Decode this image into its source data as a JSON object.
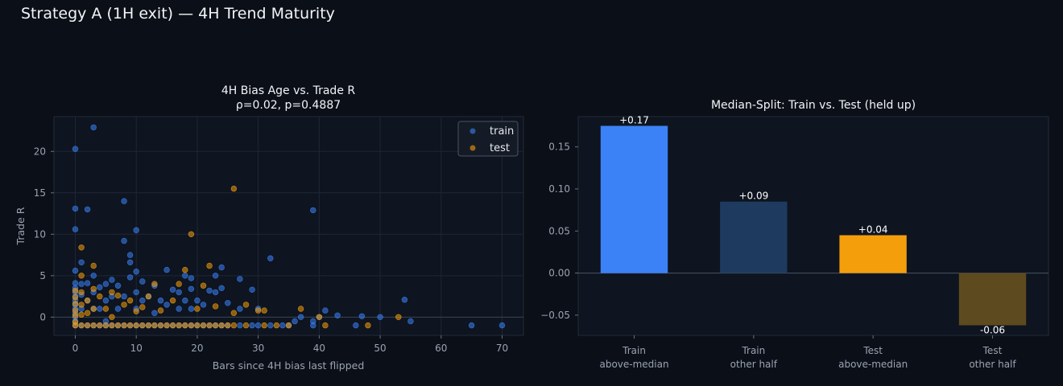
{
  "suptitle": "Strategy A (1H exit) — 4H Trend Maturity",
  "chart_data": [
    {
      "type": "scatter",
      "title_line1": "4H Bias Age vs. Trade R",
      "title_line2": "ρ=0.02, p=0.4887",
      "xlabel": "Bars since 4H bias last flipped",
      "ylabel": "Trade R",
      "xlim": [
        -3.5,
        73.5
      ],
      "ylim": [
        -2.2,
        24.2
      ],
      "xticks": [
        0,
        10,
        20,
        30,
        40,
        50,
        60,
        70
      ],
      "yticks": [
        0,
        5,
        10,
        15,
        20
      ],
      "grid": true,
      "legend_position": "top-right",
      "colors": {
        "train": "#3b82f6",
        "test": "#f59e0b"
      },
      "series": [
        {
          "name": "train",
          "points": [
            [
              0,
              20.3
            ],
            [
              0,
              13.1
            ],
            [
              0,
              10.6
            ],
            [
              0,
              5.6
            ],
            [
              0,
              4.1
            ],
            [
              0,
              3.5
            ],
            [
              0,
              3.0
            ],
            [
              0,
              2.5
            ],
            [
              0,
              2.0
            ],
            [
              0,
              1.5
            ],
            [
              0,
              1.0
            ],
            [
              0,
              0.5
            ],
            [
              0,
              0.0
            ],
            [
              0,
              -0.5
            ],
            [
              0,
              -1.0
            ],
            [
              1,
              6.6
            ],
            [
              1,
              4.0
            ],
            [
              1,
              2.7
            ],
            [
              1,
              1.0
            ],
            [
              1,
              -1.0
            ],
            [
              2,
              13.0
            ],
            [
              2,
              4.1
            ],
            [
              2,
              2.0
            ],
            [
              2,
              -1.0
            ],
            [
              3,
              22.9
            ],
            [
              3,
              5.0
            ],
            [
              3,
              3.0
            ],
            [
              3,
              1.0
            ],
            [
              3,
              -1.0
            ],
            [
              4,
              3.6
            ],
            [
              4,
              1.0
            ],
            [
              4,
              -1.0
            ],
            [
              5,
              4.0
            ],
            [
              5,
              2.0
            ],
            [
              5,
              -0.5
            ],
            [
              5,
              -1.0
            ],
            [
              6,
              4.5
            ],
            [
              6,
              2.5
            ],
            [
              6,
              -1.0
            ],
            [
              7,
              3.8
            ],
            [
              7,
              1.0
            ],
            [
              7,
              -1.0
            ],
            [
              8,
              14.0
            ],
            [
              8,
              9.2
            ],
            [
              8,
              2.5
            ],
            [
              8,
              -1.0
            ],
            [
              9,
              7.5
            ],
            [
              9,
              6.6
            ],
            [
              9,
              4.8
            ],
            [
              9,
              -1.0
            ],
            [
              10,
              10.5
            ],
            [
              10,
              5.5
            ],
            [
              10,
              3.0
            ],
            [
              10,
              1.0
            ],
            [
              10,
              -1.0
            ],
            [
              11,
              4.3
            ],
            [
              11,
              2.0
            ],
            [
              11,
              -1.0
            ],
            [
              12,
              2.5
            ],
            [
              12,
              -1.0
            ],
            [
              13,
              3.8
            ],
            [
              13,
              0.5
            ],
            [
              13,
              -1.0
            ],
            [
              14,
              2.0
            ],
            [
              14,
              -1.0
            ],
            [
              15,
              5.7
            ],
            [
              15,
              1.5
            ],
            [
              15,
              -1.0
            ],
            [
              16,
              3.3
            ],
            [
              16,
              -1.0
            ],
            [
              17,
              3.0
            ],
            [
              17,
              1.0
            ],
            [
              17,
              -1.0
            ],
            [
              18,
              5.0
            ],
            [
              18,
              2.0
            ],
            [
              18,
              -1.0
            ],
            [
              19,
              4.7
            ],
            [
              19,
              3.4
            ],
            [
              19,
              1.0
            ],
            [
              19,
              -1.0
            ],
            [
              20,
              2.0
            ],
            [
              20,
              -1.0
            ],
            [
              21,
              1.5
            ],
            [
              21,
              -1.0
            ],
            [
              22,
              3.2
            ],
            [
              22,
              -1.0
            ],
            [
              23,
              5.0
            ],
            [
              23,
              3.0
            ],
            [
              23,
              -1.0
            ],
            [
              24,
              6.0
            ],
            [
              24,
              3.5
            ],
            [
              24,
              -1.0
            ],
            [
              25,
              1.7
            ],
            [
              25,
              -1.0
            ],
            [
              27,
              4.6
            ],
            [
              27,
              1.0
            ],
            [
              27,
              -1.0
            ],
            [
              29,
              3.3
            ],
            [
              29,
              -1.0
            ],
            [
              30,
              1.0
            ],
            [
              30,
              -1.0
            ],
            [
              32,
              7.1
            ],
            [
              32,
              -1.0
            ],
            [
              34,
              -1.0
            ],
            [
              35,
              -1.0
            ],
            [
              36,
              -0.5
            ],
            [
              37,
              0.0
            ],
            [
              39,
              12.9
            ],
            [
              39,
              -0.5
            ],
            [
              39,
              -1.0
            ],
            [
              40,
              0.0
            ],
            [
              41,
              0.8
            ],
            [
              43,
              0.2
            ],
            [
              46,
              -1.0
            ],
            [
              47,
              0.1
            ],
            [
              50,
              0.0
            ],
            [
              54,
              2.1
            ],
            [
              55,
              -0.5
            ],
            [
              65,
              -1.0
            ],
            [
              70,
              -1.0
            ]
          ]
        },
        {
          "name": "test",
          "points": [
            [
              0,
              3.2
            ],
            [
              0,
              2.4
            ],
            [
              0,
              1.6
            ],
            [
              0,
              0.8
            ],
            [
              0,
              0.2
            ],
            [
              0,
              -0.6
            ],
            [
              0,
              -1.0
            ],
            [
              1,
              8.4
            ],
            [
              1,
              5.0
            ],
            [
              1,
              3.0
            ],
            [
              1,
              1.5
            ],
            [
              1,
              0.3
            ],
            [
              1,
              -1.0
            ],
            [
              2,
              2.0
            ],
            [
              2,
              0.5
            ],
            [
              2,
              -1.0
            ],
            [
              3,
              6.2
            ],
            [
              3,
              3.4
            ],
            [
              3,
              1.0
            ],
            [
              3,
              -1.0
            ],
            [
              4,
              2.5
            ],
            [
              4,
              -1.0
            ],
            [
              5,
              1.0
            ],
            [
              5,
              -1.0
            ],
            [
              6,
              3.0
            ],
            [
              6,
              0.0
            ],
            [
              6,
              -1.0
            ],
            [
              7,
              2.6
            ],
            [
              7,
              -1.0
            ],
            [
              8,
              1.5
            ],
            [
              8,
              -1.0
            ],
            [
              9,
              2.0
            ],
            [
              9,
              -1.0
            ],
            [
              10,
              0.7
            ],
            [
              10,
              -1.0
            ],
            [
              11,
              1.2
            ],
            [
              11,
              -1.0
            ],
            [
              12,
              2.5
            ],
            [
              12,
              -1.0
            ],
            [
              13,
              4.0
            ],
            [
              13,
              -1.0
            ],
            [
              14,
              0.8
            ],
            [
              14,
              -1.0
            ],
            [
              15,
              -1.0
            ],
            [
              16,
              2.0
            ],
            [
              16,
              -1.0
            ],
            [
              17,
              4.0
            ],
            [
              17,
              -1.0
            ],
            [
              18,
              5.7
            ],
            [
              18,
              -1.0
            ],
            [
              19,
              10.0
            ],
            [
              19,
              -1.0
            ],
            [
              20,
              1.0
            ],
            [
              20,
              -1.0
            ],
            [
              21,
              3.8
            ],
            [
              21,
              -1.0
            ],
            [
              22,
              6.2
            ],
            [
              22,
              -1.0
            ],
            [
              23,
              1.3
            ],
            [
              23,
              -1.0
            ],
            [
              24,
              -1.0
            ],
            [
              25,
              -1.0
            ],
            [
              26,
              15.5
            ],
            [
              26,
              0.5
            ],
            [
              26,
              -1.0
            ],
            [
              28,
              1.5
            ],
            [
              28,
              -1.0
            ],
            [
              30,
              0.8
            ],
            [
              31,
              0.8
            ],
            [
              31,
              -1.0
            ],
            [
              33,
              -1.0
            ],
            [
              35,
              -1.0
            ],
            [
              37,
              1.0
            ],
            [
              40,
              0.0
            ],
            [
              41,
              -1.0
            ],
            [
              48,
              -1.0
            ],
            [
              53,
              0.0
            ]
          ]
        }
      ]
    },
    {
      "type": "bar",
      "title": "Median-Split: Train vs. Test (held up)",
      "categories": [
        [
          "Train",
          "above-median"
        ],
        [
          "Train",
          "other half"
        ],
        [
          "Test",
          "above-median"
        ],
        [
          "Test",
          "other half"
        ]
      ],
      "values": [
        0.175,
        0.085,
        0.045,
        -0.062
      ],
      "value_labels": [
        "+0.17",
        "+0.09",
        "+0.04",
        "-0.06"
      ],
      "colors": [
        "#3b82f6",
        "#1e3a5f",
        "#f59e0b",
        "#5e4a1f"
      ],
      "ylim": [
        -0.074,
        0.186
      ],
      "yticks": [
        -0.05,
        0.0,
        0.05,
        0.1,
        0.15
      ],
      "ytick_labels": [
        "−0.05",
        "0.00",
        "0.05",
        "0.10",
        "0.15"
      ],
      "grid": false
    }
  ]
}
